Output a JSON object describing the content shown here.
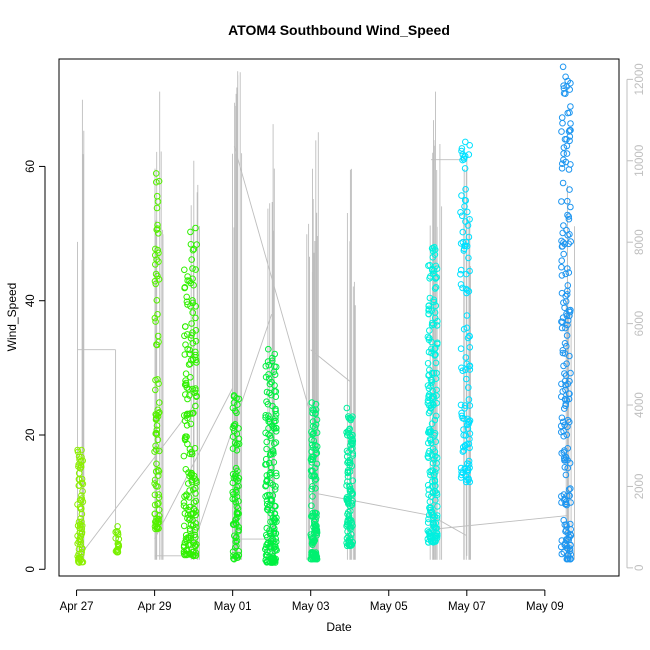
{
  "chart_data": {
    "type": "scatter",
    "title": "ATOM4 Southbound Wind_Speed",
    "xlabel": "Date",
    "ylabel": "Wind_Speed",
    "x_ticks": [
      "Apr 27",
      "Apr 29",
      "May 01",
      "May 03",
      "May 05",
      "May 07",
      "May 09"
    ],
    "y_ticks": [
      "0",
      "20",
      "40",
      "60"
    ],
    "y2_ticks": [
      "0",
      "2000",
      "4000",
      "6000",
      "8000",
      "10000",
      "12000"
    ],
    "xlim_days": [
      26.55,
      40.9
    ],
    "ylim": [
      -1,
      76
    ],
    "y2lim": [
      -200,
      12500
    ],
    "grid": false,
    "legend": "none",
    "colors": {
      "gray_line": "#bebebe",
      "green": "#00ee33",
      "cyan": "#00e5ff",
      "blue": "#1e90ff"
    },
    "groups": [
      {
        "x_start": "Apr 27 00:30",
        "x_end": "Apr 27 04:00",
        "y_min": 1,
        "y_max": 18,
        "n": 70,
        "color": "#8cf000"
      },
      {
        "x_start": "Apr 28 00:00",
        "x_end": "Apr 28 02:00",
        "y_min": 2.5,
        "y_max": 6.5,
        "n": 18,
        "color": "#78f000"
      },
      {
        "x_start": "Apr 29 00:00",
        "x_end": "Apr 29 03:00",
        "y_min": 6,
        "y_max": 61,
        "n": 90,
        "color": "#55f000"
      },
      {
        "x_start": "Apr 29 18:00",
        "x_end": "Apr 30 02:00",
        "y_min": 2,
        "y_max": 51,
        "n": 180,
        "color": "#30f000"
      },
      {
        "x_start": "May 01 00:00",
        "x_end": "May 01 04:00",
        "y_min": 1.5,
        "y_max": 27,
        "n": 80,
        "color": "#14f018"
      },
      {
        "x_start": "May 01 20:00",
        "x_end": "May 02 03:00",
        "y_min": 1,
        "y_max": 33,
        "n": 180,
        "color": "#00f040"
      },
      {
        "x_start": "May 03 00:00",
        "x_end": "May 03 04:00",
        "y_min": 1.5,
        "y_max": 25,
        "n": 120,
        "color": "#00f070"
      },
      {
        "x_start": "May 03 22:00",
        "x_end": "May 04 02:00",
        "y_min": 3.5,
        "y_max": 24.5,
        "n": 110,
        "color": "#00f0a0"
      },
      {
        "x_start": "May 06 00:00",
        "x_end": "May 06 06:00",
        "y_min": 4,
        "y_max": 48,
        "n": 200,
        "color": "#00f0e0"
      },
      {
        "x_start": "May 06 20:00",
        "x_end": "May 07 02:00",
        "y_min": 13,
        "y_max": 64,
        "n": 110,
        "color": "#00e0ff"
      },
      {
        "x_start": "May 09 10:00",
        "x_end": "May 09 16:00",
        "y_min": 1.5,
        "y_max": 76,
        "n": 190,
        "color": "#1e96f0"
      }
    ],
    "secondary_line_spikes": [
      {
        "x": "Apr 27 02:00",
        "y2_top": 11500
      },
      {
        "x": "Apr 29 02:00",
        "y2_top": 11700
      },
      {
        "x": "Apr 30 00:00",
        "y2_top": 10000
      },
      {
        "x": "May 01 00:00",
        "y2_top": 11800
      },
      {
        "x": "May 01 03:00",
        "y2_top": 12200
      },
      {
        "x": "May 02 00:00",
        "y2_top": 10900
      },
      {
        "x": "May 03 00:00",
        "y2_top": 10500
      },
      {
        "x": "May 03 03:00",
        "y2_top": 10700
      },
      {
        "x": "May 04 01:00",
        "y2_top": 9800
      },
      {
        "x": "May 06 02:00",
        "y2_top": 11000
      },
      {
        "x": "May 06 05:00",
        "y2_top": 11700
      },
      {
        "x": "May 07 00:00",
        "y2_top": 9800
      },
      {
        "x": "May 09 15:00",
        "y2_top": 9400
      }
    ]
  }
}
